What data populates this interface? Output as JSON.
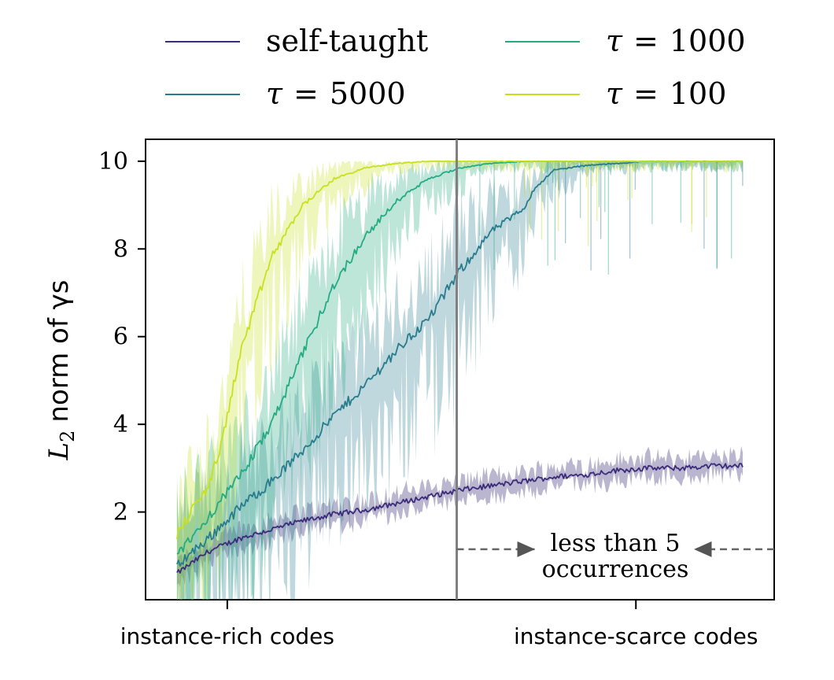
{
  "chart_data": {
    "type": "line",
    "title": "",
    "xlabel": "",
    "ylabel": "L2 norm of γs",
    "ylabel_parts": {
      "symbol": "L",
      "subscript": "2",
      "text": "norm of γs"
    },
    "xlim": [
      0,
      100
    ],
    "ylim": [
      0,
      10.5
    ],
    "yticks": [
      2,
      4,
      6,
      8,
      10
    ],
    "xtick_labels": [
      {
        "x": 13,
        "label": "instance-rich codes"
      },
      {
        "x": 78,
        "label": "instance-scarce codes"
      }
    ],
    "divider": {
      "x": 49.5
    },
    "annotation": {
      "lines": [
        "less than 5",
        "occurrences"
      ],
      "x_from": 49.5,
      "x_to": 100,
      "y": 1.15
    },
    "legend": {
      "position": "top",
      "columns": 2
    },
    "series": [
      {
        "name": "self-taught",
        "legend_label": "self-taught",
        "color": "#3b2d79",
        "x": [
          5,
          10,
          15,
          20,
          25,
          30,
          35,
          40,
          45,
          50,
          55,
          60,
          65,
          70,
          75,
          80,
          85,
          90,
          95
        ],
        "values": [
          0.6,
          1.1,
          1.4,
          1.6,
          1.8,
          1.95,
          2.05,
          2.2,
          2.35,
          2.5,
          2.6,
          2.7,
          2.8,
          2.85,
          2.95,
          3.0,
          3.0,
          3.05,
          3.05
        ]
      },
      {
        "name": "tau=5000",
        "legend_label": "5000",
        "color": "#277d8e",
        "x": [
          5,
          10,
          15,
          20,
          25,
          30,
          35,
          40,
          45,
          50,
          55,
          60,
          62,
          65,
          70,
          75,
          80,
          85,
          90,
          95
        ],
        "values": [
          0.8,
          1.4,
          2.1,
          2.7,
          3.4,
          4.2,
          4.9,
          5.7,
          6.4,
          7.5,
          8.4,
          8.9,
          9.4,
          9.8,
          9.9,
          9.95,
          10.0,
          10.0,
          10.0,
          10.0
        ]
      },
      {
        "name": "tau=1000",
        "legend_label": "1000",
        "color": "#25ab82",
        "x": [
          5,
          10,
          15,
          20,
          25,
          30,
          35,
          40,
          45,
          50,
          55,
          60,
          65,
          70,
          75,
          80,
          85,
          90,
          95
        ],
        "values": [
          1.0,
          1.9,
          2.8,
          4.0,
          5.6,
          7.2,
          8.3,
          9.1,
          9.6,
          9.85,
          9.95,
          10.0,
          10.0,
          10.0,
          10.0,
          10.0,
          10.0,
          10.0,
          10.0
        ]
      },
      {
        "name": "tau=100",
        "legend_label": "100",
        "color": "#c8e020",
        "x": [
          5,
          10,
          12,
          15,
          20,
          25,
          30,
          35,
          40,
          45,
          50,
          55,
          60,
          65,
          70,
          75,
          80,
          85,
          90,
          95
        ],
        "values": [
          1.5,
          2.6,
          3.5,
          5.6,
          7.8,
          9.0,
          9.6,
          9.85,
          9.95,
          10.0,
          10.0,
          10.0,
          10.0,
          10.0,
          10.0,
          10.0,
          10.0,
          10.0,
          10.0,
          10.0
        ]
      }
    ]
  }
}
